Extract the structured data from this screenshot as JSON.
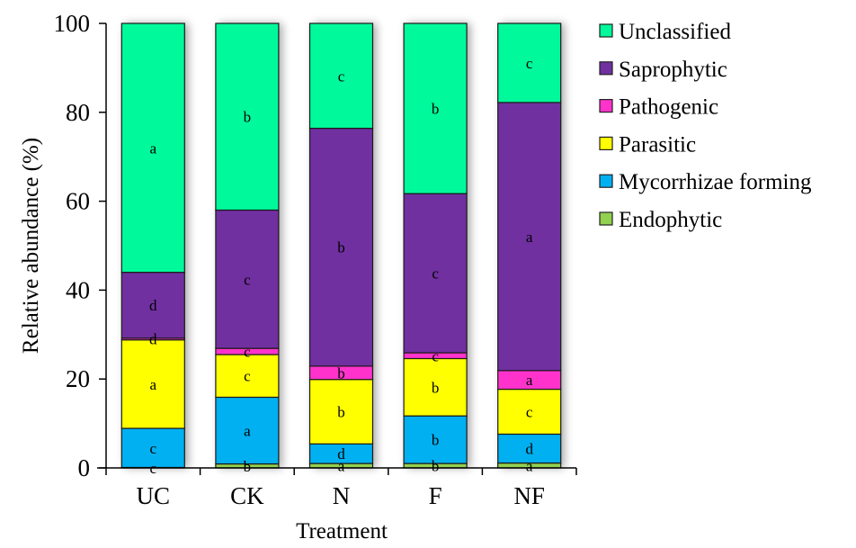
{
  "chart_data": {
    "type": "bar",
    "stacked": true,
    "title": "",
    "xlabel": "Treatment",
    "ylabel": "Relative abundance (%)",
    "ylim": [
      0,
      100
    ],
    "yticks": [
      0,
      20,
      40,
      60,
      80,
      100
    ],
    "grid": false,
    "legend_position": "right",
    "categories": [
      "UC",
      "CK",
      "N",
      "F",
      "NF"
    ],
    "series": [
      {
        "name": "Endophytic",
        "color": "#92D050",
        "values": [
          0.1,
          0.9,
          1.0,
          1.0,
          1.1
        ],
        "letters": [
          "c",
          "b",
          "a",
          "b",
          "a"
        ]
      },
      {
        "name": "Mycorrhizae forming",
        "color": "#00B0F0",
        "values": [
          8.8,
          15.0,
          4.4,
          10.7,
          6.5
        ],
        "letters": [
          "c",
          "a",
          "d",
          "b",
          "d"
        ]
      },
      {
        "name": "Parasitic",
        "color": "#FFFF00",
        "values": [
          19.9,
          9.6,
          14.5,
          12.9,
          10.1
        ],
        "letters": [
          "a",
          "c",
          "b",
          "b",
          "c"
        ]
      },
      {
        "name": "Pathogenic",
        "color": "#FF33CC",
        "values": [
          0.4,
          1.4,
          3.0,
          1.3,
          4.2
        ],
        "letters": [
          "d",
          "c",
          "b",
          "c",
          "a"
        ]
      },
      {
        "name": "Saprophytic",
        "color": "#7030A0",
        "values": [
          14.8,
          31.1,
          53.5,
          35.8,
          60.3
        ],
        "letters": [
          "d",
          "c",
          "b",
          "c",
          "a"
        ]
      },
      {
        "name": "Unclassified",
        "color": "#00F99A",
        "values": [
          56.0,
          42.0,
          23.6,
          38.3,
          17.8
        ],
        "letters": [
          "a",
          "b",
          "c",
          "b",
          "c"
        ]
      }
    ],
    "legend_order": [
      "Unclassified",
      "Saprophytic",
      "Pathogenic",
      "Parasitic",
      "Mycorrhizae forming",
      "Endophytic"
    ]
  }
}
